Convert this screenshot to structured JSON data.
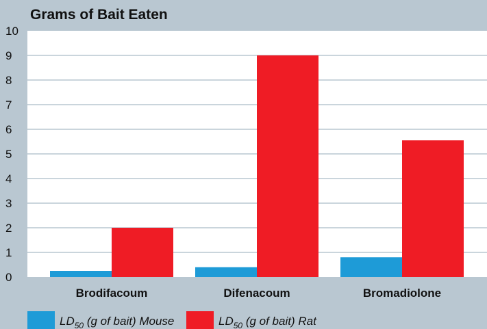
{
  "chart_data": {
    "type": "bar",
    "title": "Grams of Bait Eaten",
    "categories": [
      "Brodifacoum",
      "Difenacoum",
      "Bromadiolone"
    ],
    "series": [
      {
        "name": "LD50 (g of bait) Mouse",
        "values": [
          0.25,
          0.4,
          0.8
        ],
        "color": "#1e9bd7"
      },
      {
        "name": "LD50 (g of bait) Rat",
        "values": [
          2.0,
          9.0,
          5.55
        ],
        "color": "#ef1c25"
      }
    ],
    "legend": [
      {
        "prefix": "LD",
        "sub": "50",
        "suffix": " (g of bait) Mouse"
      },
      {
        "prefix": "LD",
        "sub": "50",
        "suffix": " (g of bait) Rat"
      }
    ],
    "yticks": [
      "0",
      "1",
      "2",
      "3",
      "4",
      "5",
      "6",
      "7",
      "8",
      "9",
      "10"
    ],
    "ylim": [
      0,
      10
    ],
    "grid": true,
    "legend_position": "bottom",
    "colors": {
      "background": "#b9c7d1",
      "plot_area": "#ffffff"
    }
  }
}
